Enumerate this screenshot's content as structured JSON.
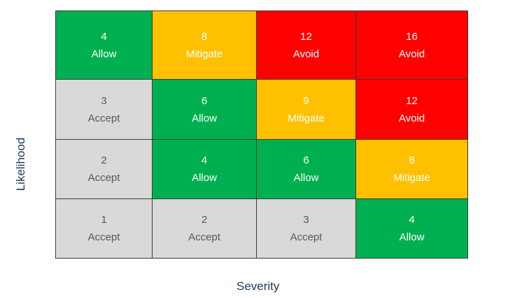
{
  "axes": {
    "x_label": "Severity",
    "y_label": "Likelihood"
  },
  "colors": {
    "Allow": "#00b050",
    "Mitigate": "#ffc000",
    "Avoid": "#ff0000",
    "Accept": "#d9d9d9",
    "light_text": "#ffffff",
    "dark_text": "#595959"
  },
  "matrix": {
    "rows": [
      {
        "cells": [
          {
            "score": "4",
            "action": "Allow"
          },
          {
            "score": "8",
            "action": "Mitigate"
          },
          {
            "score": "12",
            "action": "Avoid"
          },
          {
            "score": "16",
            "action": "Avoid"
          }
        ]
      },
      {
        "cells": [
          {
            "score": "3",
            "action": "Accept"
          },
          {
            "score": "6",
            "action": "Allow"
          },
          {
            "score": "9",
            "action": "Mitigate"
          },
          {
            "score": "12",
            "action": "Avoid"
          }
        ]
      },
      {
        "cells": [
          {
            "score": "2",
            "action": "Accept"
          },
          {
            "score": "4",
            "action": "Allow"
          },
          {
            "score": "6",
            "action": "Allow"
          },
          {
            "score": "8",
            "action": "Mitigate"
          }
        ]
      },
      {
        "cells": [
          {
            "score": "1",
            "action": "Accept"
          },
          {
            "score": "2",
            "action": "Accept"
          },
          {
            "score": "3",
            "action": "Accept"
          },
          {
            "score": "4",
            "action": "Allow"
          }
        ]
      }
    ]
  }
}
